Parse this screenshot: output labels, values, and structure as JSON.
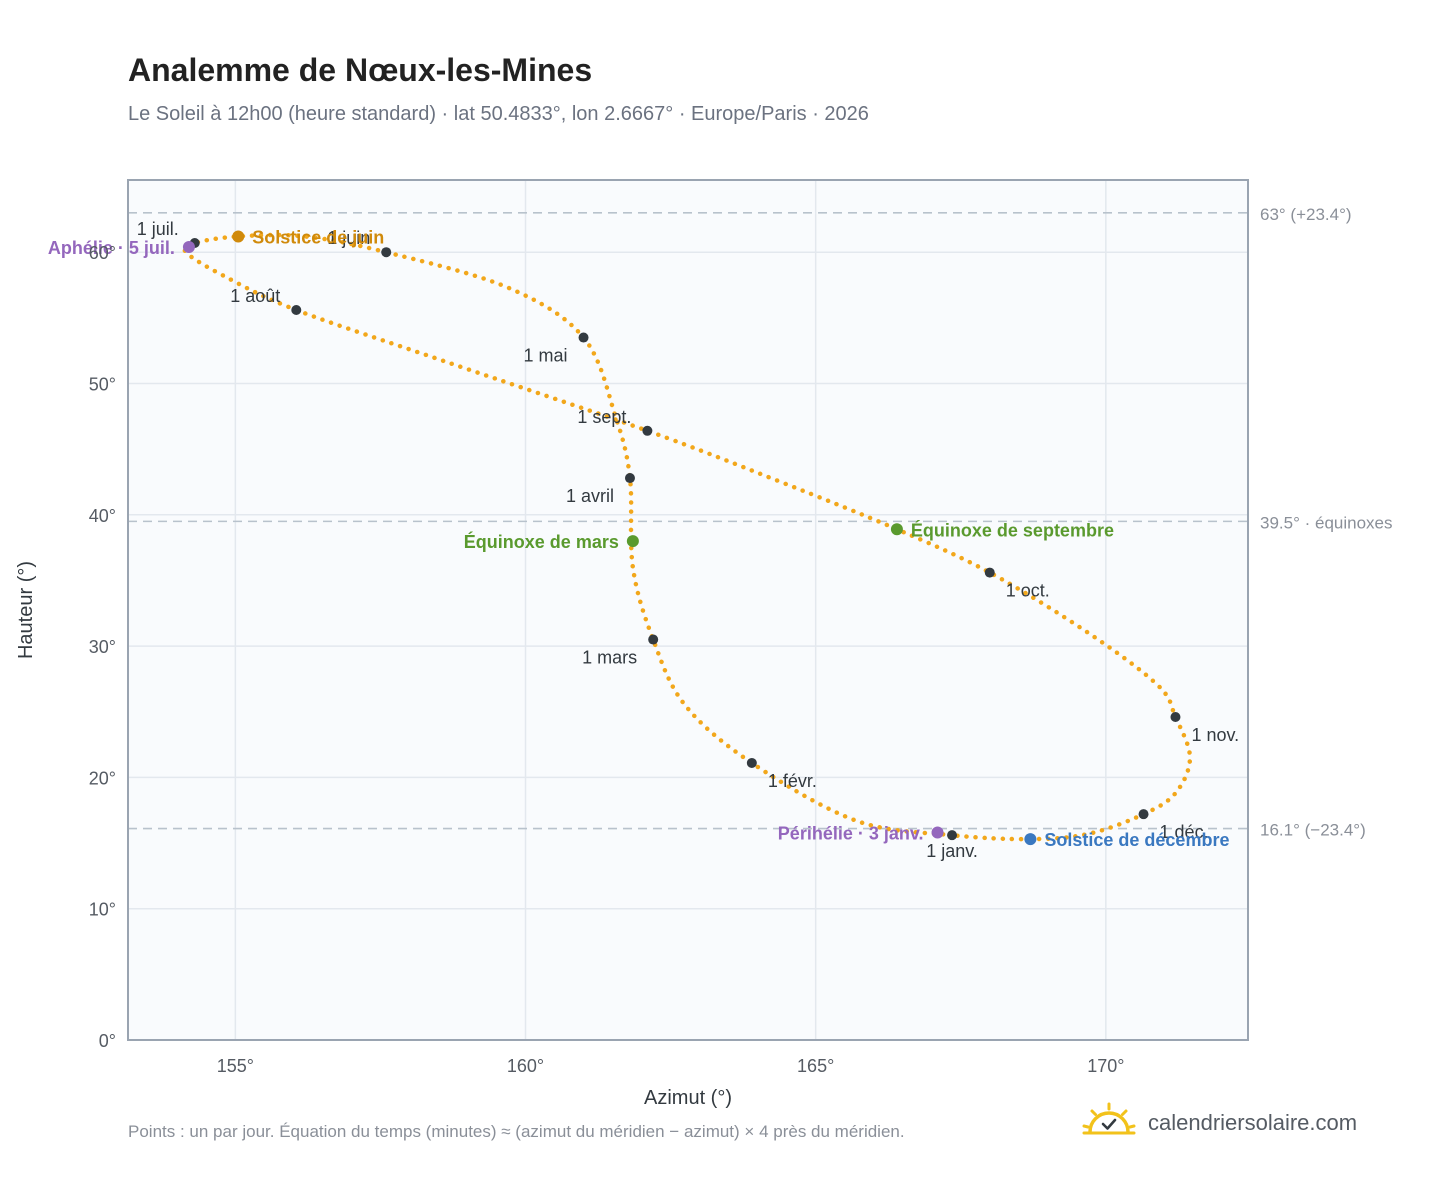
{
  "header": {
    "title": "Analemme de Nœux-les-Mines",
    "subtitle": "Le Soleil à 12h00 (heure standard) · lat 50.4833°, lon 2.6667° · Europe/Paris · 2026"
  },
  "footer": {
    "note": "Points : un par jour. Équation du temps (minutes) ≈ (azimut du méridien − azimut) × 4 près du méridien.",
    "brand": "calendriersolaire.com"
  },
  "colors": {
    "curve": "#f2a71b",
    "month_marker": "#333a40",
    "solstice_june": "#d08a0b",
    "solstice_december": "#3a78c0",
    "equinox": "#5a9a2e",
    "apsis": "#9467bd",
    "plot_background": "#f9fbfd",
    "grid": "#e3e8ee",
    "reference_line": "#b8c2cc",
    "axis": "#9aa4b1"
  },
  "chart_data": {
    "type": "scatter",
    "xlabel": "Azimut (°)",
    "ylabel": "Hauteur (°)",
    "xlim": [
      153.15,
      172.45
    ],
    "ylim": [
      0,
      65.5
    ],
    "x_ticks": [
      {
        "value": 155,
        "label": "155°"
      },
      {
        "value": 160,
        "label": "160°"
      },
      {
        "value": 165,
        "label": "165°"
      },
      {
        "value": 170,
        "label": "170°"
      }
    ],
    "y_ticks": [
      {
        "value": 0,
        "label": "0°"
      },
      {
        "value": 10,
        "label": "10°"
      },
      {
        "value": 20,
        "label": "20°"
      },
      {
        "value": 30,
        "label": "30°"
      },
      {
        "value": 40,
        "label": "40°"
      },
      {
        "value": 50,
        "label": "50°"
      },
      {
        "value": 60,
        "label": "60°"
      }
    ],
    "grid": true,
    "reference_lines": [
      {
        "y": 63.0,
        "label": "63° (+23.4°)"
      },
      {
        "y": 39.5,
        "label": "39.5° · équinoxes"
      },
      {
        "y": 16.1,
        "label": "16.1° (−23.4°)"
      }
    ],
    "analemma_path": [
      {
        "x": 167.35,
        "y": 15.6
      },
      {
        "x": 165.7,
        "y": 16.7
      },
      {
        "x": 163.9,
        "y": 21.1
      },
      {
        "x": 162.75,
        "y": 25.5
      },
      {
        "x": 162.2,
        "y": 30.5
      },
      {
        "x": 161.85,
        "y": 36.0
      },
      {
        "x": 161.8,
        "y": 42.8
      },
      {
        "x": 161.55,
        "y": 47.5
      },
      {
        "x": 161.0,
        "y": 53.5
      },
      {
        "x": 159.7,
        "y": 57.3
      },
      {
        "x": 157.6,
        "y": 60.0
      },
      {
        "x": 156.2,
        "y": 61.2
      },
      {
        "x": 155.05,
        "y": 61.2
      },
      {
        "x": 154.3,
        "y": 60.7
      },
      {
        "x": 154.15,
        "y": 60.0
      },
      {
        "x": 154.8,
        "y": 58.2
      },
      {
        "x": 156.05,
        "y": 55.6
      },
      {
        "x": 158.6,
        "y": 51.7
      },
      {
        "x": 162.1,
        "y": 46.4
      },
      {
        "x": 164.4,
        "y": 42.5
      },
      {
        "x": 166.4,
        "y": 38.9
      },
      {
        "x": 168.0,
        "y": 35.6
      },
      {
        "x": 169.7,
        "y": 31.0
      },
      {
        "x": 170.9,
        "y": 27.0
      },
      {
        "x": 171.2,
        "y": 24.6
      },
      {
        "x": 171.45,
        "y": 21.5
      },
      {
        "x": 171.2,
        "y": 18.8
      },
      {
        "x": 170.65,
        "y": 17.2
      },
      {
        "x": 169.7,
        "y": 15.7
      },
      {
        "x": 168.7,
        "y": 15.3
      },
      {
        "x": 167.35,
        "y": 15.6
      }
    ],
    "month_markers": [
      {
        "label": "1 janv.",
        "x": 167.35,
        "y": 15.6,
        "label_side": "below"
      },
      {
        "label": "1 févr.",
        "x": 163.9,
        "y": 21.1,
        "label_side": "right"
      },
      {
        "label": "1 mars",
        "x": 162.2,
        "y": 30.5,
        "label_side": "left"
      },
      {
        "label": "1 avril",
        "x": 161.8,
        "y": 42.8,
        "label_side": "left"
      },
      {
        "label": "1 mai",
        "x": 161.0,
        "y": 53.5,
        "label_side": "left"
      },
      {
        "label": "1 juin",
        "x": 157.6,
        "y": 60.0,
        "label_side": "upper-left"
      },
      {
        "label": "1 juil.",
        "x": 154.3,
        "y": 60.7,
        "label_side": "upper-left"
      },
      {
        "label": "1 août",
        "x": 156.05,
        "y": 55.6,
        "label_side": "upper-left"
      },
      {
        "label": "1 sept.",
        "x": 162.1,
        "y": 46.4,
        "label_side": "upper-left"
      },
      {
        "label": "1 oct.",
        "x": 168.0,
        "y": 35.6,
        "label_side": "right"
      },
      {
        "label": "1 nov.",
        "x": 171.2,
        "y": 24.6,
        "label_side": "right"
      },
      {
        "label": "1 déc.",
        "x": 170.65,
        "y": 17.2,
        "label_side": "right"
      }
    ],
    "events": [
      {
        "label": "Solstice de juin",
        "x": 155.05,
        "y": 61.2,
        "kind": "solstice_june",
        "label_side": "right"
      },
      {
        "label": "Solstice de décembre",
        "x": 168.7,
        "y": 15.3,
        "kind": "solstice_december",
        "label_side": "right"
      },
      {
        "label": "Équinoxe de mars",
        "x": 161.85,
        "y": 38.0,
        "kind": "equinox",
        "label_side": "left"
      },
      {
        "label": "Équinoxe de septembre",
        "x": 166.4,
        "y": 38.9,
        "kind": "equinox",
        "label_side": "right"
      },
      {
        "label": "Aphélie · 5 juil.",
        "x": 154.2,
        "y": 60.4,
        "kind": "apsis",
        "label_side": "left"
      },
      {
        "label": "Périhélie · 3 janv.",
        "x": 167.1,
        "y": 15.8,
        "kind": "apsis",
        "label_side": "left"
      }
    ]
  }
}
